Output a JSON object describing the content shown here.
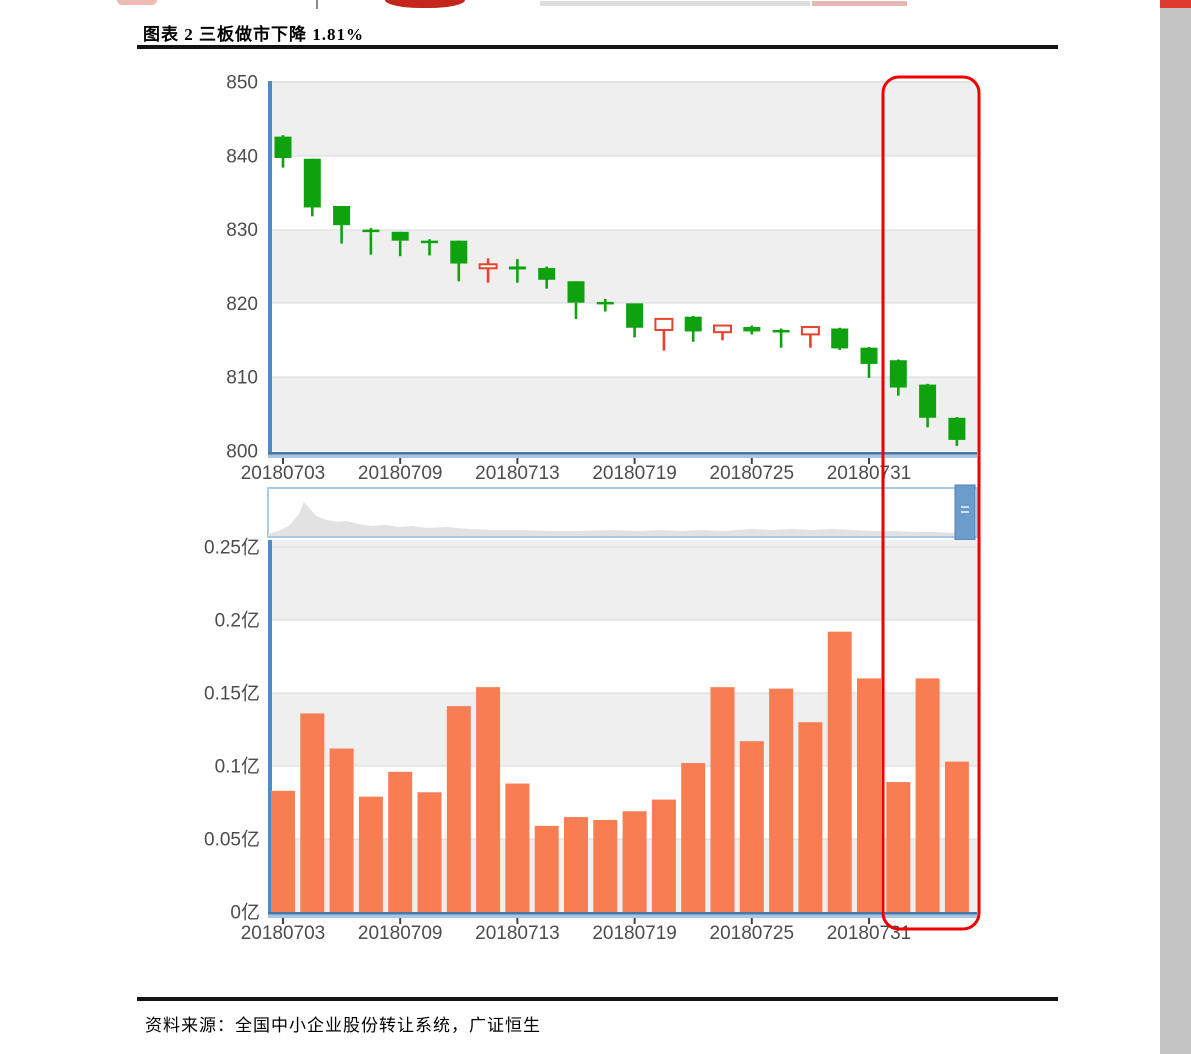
{
  "page": {
    "title": "图表 2 三板做市下降 1.81%",
    "source": "资料来源：全国中小企业股份转让系统，广证恒生"
  },
  "colors": {
    "up_candle": "#e8432c",
    "down_candle": "#0ea30e",
    "volume_bar": "#f87d52",
    "axis_blue": "#4e8cc6",
    "axis_dark": "#4878a8",
    "axis_light": "#a9c7e2",
    "band_gray": "#efefef",
    "grid_line": "#d9d9d9",
    "label_gray": "#4c4c4c",
    "highlight_red": "#ee0000",
    "nav_border": "#a9c9e9",
    "nav_area": "#e2e2e2",
    "nav_thumb": "#6b9ccb",
    "nav_thumb_edge": "#4c82b4",
    "nav_grip": "#cfe0ef"
  },
  "chart_data": [
    {
      "type": "candlestick",
      "title": "三板做市",
      "dates": [
        "20180703",
        "20180704",
        "20180705",
        "20180706",
        "20180709",
        "20180710",
        "20180711",
        "20180712",
        "20180713",
        "20180716",
        "20180717",
        "20180718",
        "20180719",
        "20180720",
        "20180723",
        "20180724",
        "20180725",
        "20180726",
        "20180727",
        "20180730",
        "20180731",
        "20180801",
        "20180802",
        "20180803"
      ],
      "ohlc": [
        [
          842.6,
          842.8,
          838.4,
          839.7
        ],
        [
          839.6,
          839.6,
          831.8,
          833.0
        ],
        [
          833.2,
          833.2,
          828.1,
          830.6
        ],
        [
          830.0,
          830.2,
          826.6,
          829.7
        ],
        [
          829.7,
          829.7,
          826.4,
          828.5
        ],
        [
          828.5,
          828.7,
          826.5,
          828.2
        ],
        [
          828.5,
          828.5,
          823.0,
          825.4
        ],
        [
          825.0,
          826.1,
          822.8,
          825.3
        ],
        [
          825.0,
          826.0,
          822.8,
          824.6
        ],
        [
          824.8,
          825.0,
          822.0,
          823.2
        ],
        [
          823.0,
          823.0,
          817.9,
          820.1
        ],
        [
          820.2,
          820.6,
          818.9,
          820.0
        ],
        [
          820.0,
          820.0,
          815.4,
          816.7
        ],
        [
          816.4,
          817.9,
          813.6,
          817.9
        ],
        [
          818.2,
          818.3,
          814.8,
          816.2
        ],
        [
          816.1,
          817.1,
          815.0,
          817.0
        ],
        [
          816.8,
          817.0,
          815.8,
          816.2
        ],
        [
          816.4,
          816.6,
          814.0,
          816.1
        ],
        [
          815.8,
          816.9,
          814.0,
          816.8
        ],
        [
          816.6,
          816.7,
          813.7,
          813.9
        ],
        [
          814.0,
          814.1,
          809.9,
          811.8
        ],
        [
          812.3,
          812.4,
          807.5,
          808.6
        ],
        [
          809.0,
          809.1,
          803.2,
          804.5
        ],
        [
          804.5,
          804.6,
          800.7,
          801.5
        ]
      ],
      "ylim": [
        800,
        850
      ],
      "yticks": [
        "850",
        "840",
        "830",
        "820",
        "810",
        "800"
      ],
      "xtick_indices": [
        0,
        4,
        8,
        12,
        16,
        20
      ],
      "xtick_labels": [
        "20180703",
        "20180709",
        "20180713",
        "20180719",
        "20180725",
        "20180731"
      ],
      "grid": "banded"
    },
    {
      "type": "bar",
      "title": "成交额",
      "unit": "亿",
      "values": [
        0.083,
        0.136,
        0.112,
        0.079,
        0.096,
        0.082,
        0.141,
        0.154,
        0.088,
        0.059,
        0.065,
        0.063,
        0.069,
        0.077,
        0.102,
        0.154,
        0.117,
        0.153,
        0.13,
        0.192,
        0.16,
        0.089,
        0.16,
        0.103
      ],
      "ylim": [
        0,
        0.25
      ],
      "yticks": [
        "0.25亿",
        "0.2亿",
        "0.15亿",
        "0.1亿",
        "0.05亿",
        "0亿"
      ],
      "xtick_indices": [
        0,
        4,
        8,
        12,
        16,
        20
      ],
      "xtick_labels": [
        "20180703",
        "20180709",
        "20180713",
        "20180719",
        "20180725",
        "20180731"
      ],
      "grid": "banded"
    },
    {
      "type": "navigator",
      "profile": [
        [
          0,
          2
        ],
        [
          0.015,
          5
        ],
        [
          0.03,
          10
        ],
        [
          0.045,
          22
        ],
        [
          0.052,
          34
        ],
        [
          0.06,
          28
        ],
        [
          0.07,
          20
        ],
        [
          0.085,
          16
        ],
        [
          0.1,
          14
        ],
        [
          0.115,
          15
        ],
        [
          0.13,
          12
        ],
        [
          0.15,
          10
        ],
        [
          0.17,
          11
        ],
        [
          0.19,
          9
        ],
        [
          0.21,
          10
        ],
        [
          0.23,
          8
        ],
        [
          0.26,
          9
        ],
        [
          0.29,
          7
        ],
        [
          0.33,
          6
        ],
        [
          0.37,
          6
        ],
        [
          0.41,
          5
        ],
        [
          0.45,
          5
        ],
        [
          0.5,
          6
        ],
        [
          0.54,
          5
        ],
        [
          0.57,
          6
        ],
        [
          0.6,
          5
        ],
        [
          0.63,
          6
        ],
        [
          0.66,
          5
        ],
        [
          0.7,
          7
        ],
        [
          0.73,
          6
        ],
        [
          0.76,
          7
        ],
        [
          0.79,
          6
        ],
        [
          0.82,
          7
        ],
        [
          0.85,
          6
        ],
        [
          0.88,
          5
        ],
        [
          0.91,
          5
        ],
        [
          0.94,
          4
        ],
        [
          0.97,
          4
        ],
        [
          1,
          3
        ]
      ],
      "thumb_position": "right"
    }
  ],
  "highlight": {
    "dates": [
      "20180801",
      "20180802",
      "20180803"
    ],
    "color": "#ee0000"
  }
}
